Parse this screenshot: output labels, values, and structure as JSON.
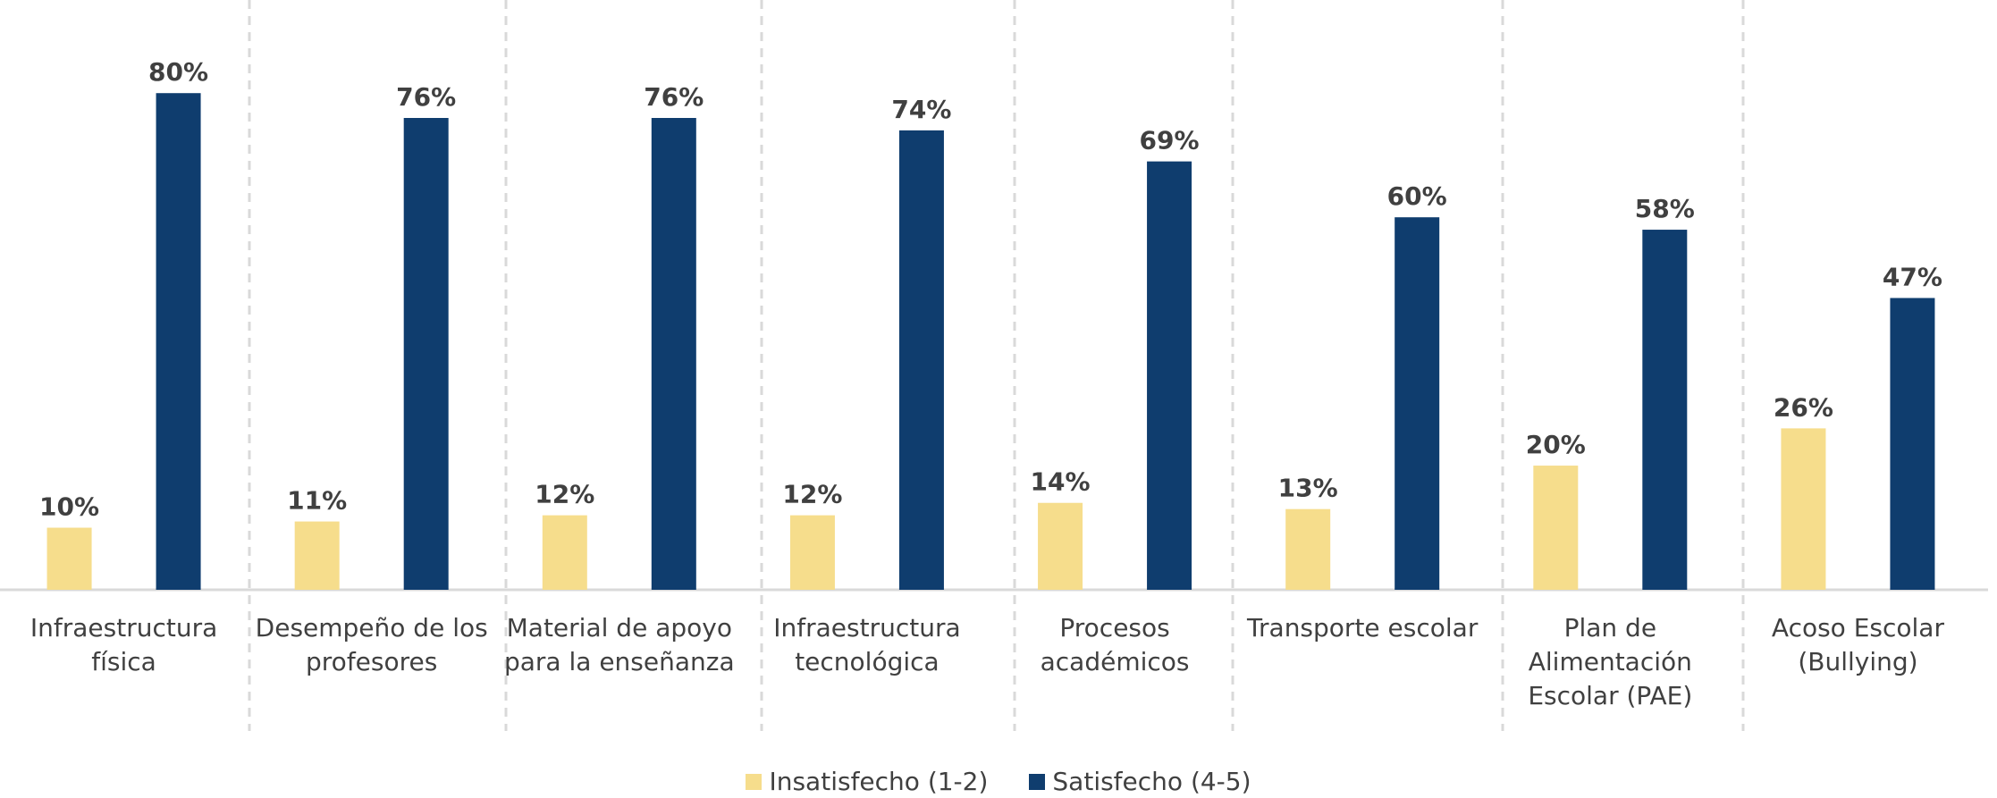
{
  "chart_data": {
    "type": "bar",
    "categories": [
      "Infraestructura física",
      "Desempeño de los profesores",
      "Material de apoyo para la enseñanza",
      "Infraestructura tecnológica",
      "Procesos académicos",
      "Transporte escolar",
      "Plan de Alimentación Escolar (PAE)",
      "Acoso Escolar (Bullying)"
    ],
    "series": [
      {
        "name": "Insatisfecho (1-2)",
        "color": "#f6dd8c",
        "values": [
          10,
          11,
          12,
          12,
          14,
          13,
          20,
          26
        ],
        "value_labels": [
          "10%",
          "11%",
          "12%",
          "12%",
          "14%",
          "13%",
          "20%",
          "26%"
        ]
      },
      {
        "name": "Satisfecho (4-5)",
        "color": "#0f3d6e",
        "values": [
          80,
          76,
          76,
          74,
          69,
          60,
          58,
          47
        ],
        "value_labels": [
          "80%",
          "76%",
          "76%",
          "74%",
          "69%",
          "60%",
          "58%",
          "47%"
        ]
      }
    ],
    "ylim": [
      0,
      95
    ],
    "legend": "bottom"
  }
}
